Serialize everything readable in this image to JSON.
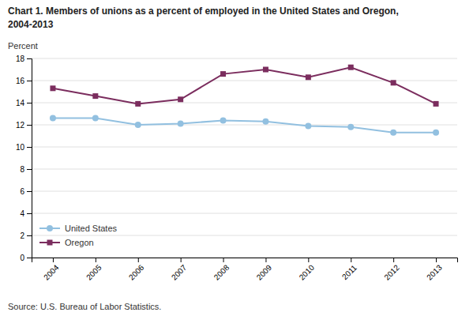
{
  "chart_data": {
    "type": "line",
    "title": "Chart 1. Members of unions as a percent of employed in the United States and Oregon,",
    "subtitle": "2004-2013",
    "y_label": "Percent",
    "source": "Source: U.S. Bureau of Labor Statistics.",
    "categories": [
      "2004",
      "2005",
      "2006",
      "2007",
      "2008",
      "2009",
      "2010",
      "2011",
      "2012",
      "2013"
    ],
    "series": [
      {
        "name": "United States",
        "color": "#92c0e0",
        "marker": "circle",
        "values": [
          12.6,
          12.6,
          12.0,
          12.1,
          12.4,
          12.3,
          11.9,
          11.8,
          11.3,
          11.3
        ]
      },
      {
        "name": "Oregon",
        "color": "#7b2d5e",
        "marker": "square",
        "values": [
          15.3,
          14.6,
          13.9,
          14.3,
          16.6,
          17.0,
          16.3,
          17.2,
          15.8,
          13.9
        ]
      }
    ],
    "ylim": [
      0,
      18
    ],
    "yticks": [
      0,
      2,
      4,
      6,
      8,
      10,
      12,
      14,
      16,
      18
    ],
    "grid": true,
    "legend": "lower left"
  }
}
